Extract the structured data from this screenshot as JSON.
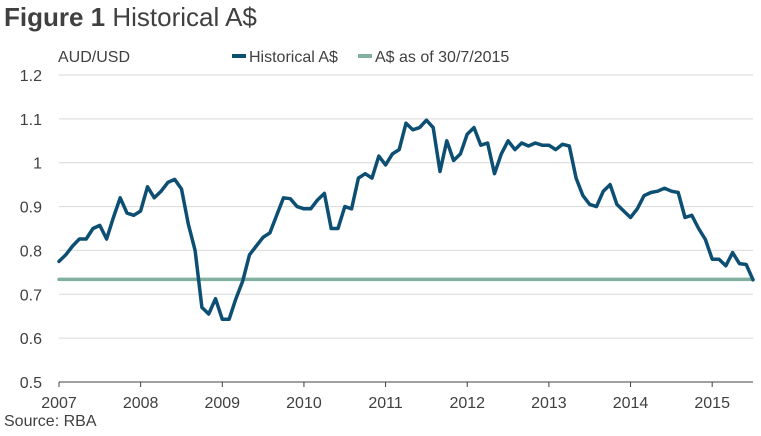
{
  "figure_label": "Figure 1",
  "title": "Historical A$",
  "source": "Source: RBA",
  "colors": {
    "historical": "#0d4f73",
    "reference": "#7fb0a0",
    "grid": "#d9d9d9",
    "axis": "#404040"
  },
  "chart_data": {
    "type": "line",
    "ylabel": "AUD/USD",
    "xlabel": "",
    "ylim": [
      0.5,
      1.2
    ],
    "xlim": [
      "2007-01",
      "2015-07"
    ],
    "y_ticks": [
      "0.5",
      "0.6",
      "0.7",
      "0.8",
      "0.9",
      "1",
      "1.1",
      "1.2"
    ],
    "x_ticks": [
      "2007",
      "2008",
      "2009",
      "2010",
      "2011",
      "2012",
      "2013",
      "2014",
      "2015"
    ],
    "grid": true,
    "legend": "top",
    "series": [
      {
        "name": "Historical A$",
        "color": "#0d4f73",
        "points": [
          [
            "2007-01",
            0.775
          ],
          [
            "2007-02",
            0.79
          ],
          [
            "2007-03",
            0.81
          ],
          [
            "2007-04",
            0.826
          ],
          [
            "2007-05",
            0.826
          ],
          [
            "2007-06",
            0.85
          ],
          [
            "2007-07",
            0.857
          ],
          [
            "2007-08",
            0.826
          ],
          [
            "2007-09",
            0.875
          ],
          [
            "2007-10",
            0.92
          ],
          [
            "2007-11",
            0.885
          ],
          [
            "2007-12",
            0.88
          ],
          [
            "2008-01",
            0.89
          ],
          [
            "2008-02",
            0.945
          ],
          [
            "2008-03",
            0.92
          ],
          [
            "2008-04",
            0.935
          ],
          [
            "2008-05",
            0.955
          ],
          [
            "2008-06",
            0.962
          ],
          [
            "2008-07",
            0.94
          ],
          [
            "2008-08",
            0.86
          ],
          [
            "2008-09",
            0.8
          ],
          [
            "2008-10",
            0.67
          ],
          [
            "2008-11",
            0.655
          ],
          [
            "2008-12",
            0.69
          ],
          [
            "2009-01",
            0.643
          ],
          [
            "2009-02",
            0.643
          ],
          [
            "2009-03",
            0.69
          ],
          [
            "2009-04",
            0.73
          ],
          [
            "2009-05",
            0.79
          ],
          [
            "2009-06",
            0.81
          ],
          [
            "2009-07",
            0.83
          ],
          [
            "2009-08",
            0.84
          ],
          [
            "2009-09",
            0.88
          ],
          [
            "2009-10",
            0.92
          ],
          [
            "2009-11",
            0.918
          ],
          [
            "2009-12",
            0.9
          ],
          [
            "2010-01",
            0.895
          ],
          [
            "2010-02",
            0.895
          ],
          [
            "2010-03",
            0.915
          ],
          [
            "2010-04",
            0.93
          ],
          [
            "2010-05",
            0.85
          ],
          [
            "2010-06",
            0.85
          ],
          [
            "2010-07",
            0.9
          ],
          [
            "2010-08",
            0.895
          ],
          [
            "2010-09",
            0.965
          ],
          [
            "2010-10",
            0.975
          ],
          [
            "2010-11",
            0.965
          ],
          [
            "2010-12",
            1.015
          ],
          [
            "2011-01",
            0.995
          ],
          [
            "2011-02",
            1.02
          ],
          [
            "2011-03",
            1.03
          ],
          [
            "2011-04",
            1.09
          ],
          [
            "2011-05",
            1.075
          ],
          [
            "2011-06",
            1.08
          ],
          [
            "2011-07",
            1.097
          ],
          [
            "2011-08",
            1.08
          ],
          [
            "2011-09",
            0.98
          ],
          [
            "2011-10",
            1.05
          ],
          [
            "2011-11",
            1.005
          ],
          [
            "2011-12",
            1.02
          ],
          [
            "2012-01",
            1.065
          ],
          [
            "2012-02",
            1.08
          ],
          [
            "2012-03",
            1.04
          ],
          [
            "2012-04",
            1.045
          ],
          [
            "2012-05",
            0.975
          ],
          [
            "2012-06",
            1.02
          ],
          [
            "2012-07",
            1.05
          ],
          [
            "2012-08",
            1.03
          ],
          [
            "2012-09",
            1.045
          ],
          [
            "2012-10",
            1.038
          ],
          [
            "2012-11",
            1.045
          ],
          [
            "2012-12",
            1.04
          ],
          [
            "2013-01",
            1.04
          ],
          [
            "2013-02",
            1.03
          ],
          [
            "2013-03",
            1.042
          ],
          [
            "2013-04",
            1.038
          ],
          [
            "2013-05",
            0.965
          ],
          [
            "2013-06",
            0.925
          ],
          [
            "2013-07",
            0.905
          ],
          [
            "2013-08",
            0.9
          ],
          [
            "2013-09",
            0.935
          ],
          [
            "2013-10",
            0.95
          ],
          [
            "2013-11",
            0.905
          ],
          [
            "2013-12",
            0.89
          ],
          [
            "2014-01",
            0.875
          ],
          [
            "2014-02",
            0.895
          ],
          [
            "2014-03",
            0.925
          ],
          [
            "2014-04",
            0.932
          ],
          [
            "2014-05",
            0.935
          ],
          [
            "2014-06",
            0.942
          ],
          [
            "2014-07",
            0.935
          ],
          [
            "2014-08",
            0.932
          ],
          [
            "2014-09",
            0.875
          ],
          [
            "2014-10",
            0.88
          ],
          [
            "2014-11",
            0.85
          ],
          [
            "2014-12",
            0.825
          ],
          [
            "2015-01",
            0.78
          ],
          [
            "2015-02",
            0.78
          ],
          [
            "2015-03",
            0.765
          ],
          [
            "2015-04",
            0.795
          ],
          [
            "2015-05",
            0.77
          ],
          [
            "2015-06",
            0.768
          ],
          [
            "2015-07",
            0.733
          ]
        ]
      },
      {
        "name": "A$ as of 30/7/2015",
        "color": "#7fb0a0",
        "points": [
          [
            "2007-01",
            0.734
          ],
          [
            "2015-07",
            0.734
          ]
        ]
      }
    ]
  }
}
